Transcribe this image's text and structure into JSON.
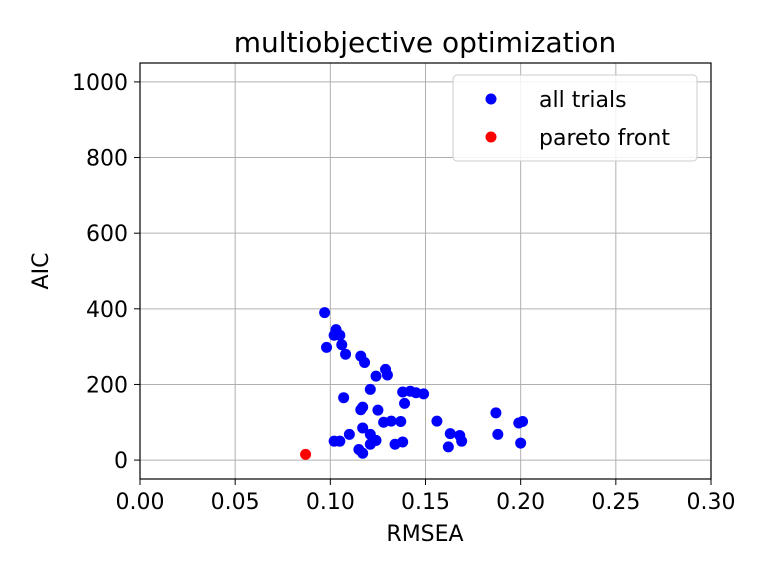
{
  "chart_data": {
    "type": "scatter",
    "title": "multiobjective optimization",
    "xlabel": "RMSEA",
    "ylabel": "AIC",
    "xlim": [
      0.0,
      0.3
    ],
    "ylim": [
      -50,
      1050
    ],
    "xticks": [
      0.0,
      0.05,
      0.1,
      0.15,
      0.2,
      0.25,
      0.3
    ],
    "xtick_labels": [
      "0.00",
      "0.05",
      "0.10",
      "0.15",
      "0.20",
      "0.25",
      "0.30"
    ],
    "yticks": [
      0,
      200,
      400,
      600,
      800,
      1000
    ],
    "ytick_labels": [
      "0",
      "200",
      "400",
      "600",
      "800",
      "1000"
    ],
    "grid": true,
    "legend_position": "top-right",
    "series": [
      {
        "name": "all trials",
        "color": "#0000ff",
        "points": [
          [
            0.097,
            390
          ],
          [
            0.103,
            345
          ],
          [
            0.102,
            330
          ],
          [
            0.105,
            330
          ],
          [
            0.106,
            305
          ],
          [
            0.098,
            298
          ],
          [
            0.108,
            280
          ],
          [
            0.116,
            275
          ],
          [
            0.118,
            258
          ],
          [
            0.129,
            240
          ],
          [
            0.13,
            225
          ],
          [
            0.124,
            222
          ],
          [
            0.121,
            187
          ],
          [
            0.138,
            180
          ],
          [
            0.142,
            182
          ],
          [
            0.145,
            178
          ],
          [
            0.149,
            175
          ],
          [
            0.139,
            150
          ],
          [
            0.117,
            140
          ],
          [
            0.116,
            133
          ],
          [
            0.125,
            132
          ],
          [
            0.107,
            165
          ],
          [
            0.128,
            100
          ],
          [
            0.132,
            103
          ],
          [
            0.137,
            102
          ],
          [
            0.156,
            103
          ],
          [
            0.187,
            125
          ],
          [
            0.199,
            98
          ],
          [
            0.201,
            102
          ],
          [
            0.117,
            85
          ],
          [
            0.11,
            68
          ],
          [
            0.121,
            68
          ],
          [
            0.163,
            70
          ],
          [
            0.168,
            65
          ],
          [
            0.188,
            68
          ],
          [
            0.102,
            50
          ],
          [
            0.105,
            50
          ],
          [
            0.124,
            52
          ],
          [
            0.121,
            42
          ],
          [
            0.134,
            42
          ],
          [
            0.138,
            48
          ],
          [
            0.169,
            50
          ],
          [
            0.2,
            45
          ],
          [
            0.115,
            28
          ],
          [
            0.117,
            18
          ],
          [
            0.162,
            35
          ]
        ]
      },
      {
        "name": "pareto front",
        "color": "#ff0000",
        "points": [
          [
            0.087,
            15
          ]
        ]
      }
    ]
  }
}
